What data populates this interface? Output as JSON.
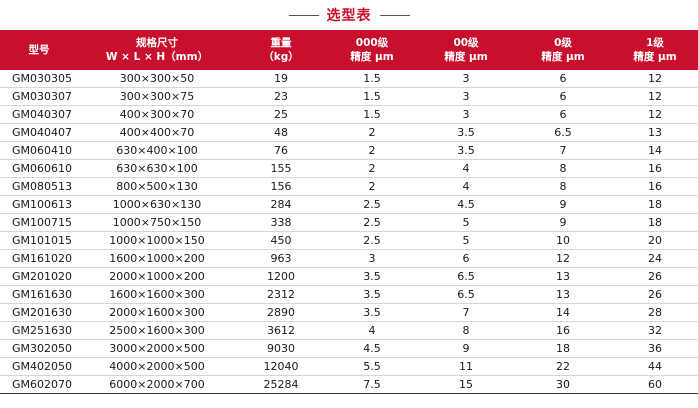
{
  "title": "选型表",
  "headers": [
    {
      "l1": "型号",
      "l2": ""
    },
    {
      "l1": "规格尺寸",
      "l2": "W × L × H（mm）"
    },
    {
      "l1": "重量",
      "l2": "（kg）"
    },
    {
      "l1": "000级",
      "l2": "精度 μm"
    },
    {
      "l1": "00级",
      "l2": "精度 μm"
    },
    {
      "l1": "0级",
      "l2": "精度 μm"
    },
    {
      "l1": "1级",
      "l2": "精度 μm"
    }
  ],
  "rows": [
    [
      "GM030305",
      "300×300×50",
      "19",
      "1.5",
      "3",
      "6",
      "12"
    ],
    [
      "GM030307",
      "300×300×75",
      "23",
      "1.5",
      "3",
      "6",
      "12"
    ],
    [
      "GM040307",
      "400×300×70",
      "25",
      "1.5",
      "3",
      "6",
      "12"
    ],
    [
      "GM040407",
      "400×400×70",
      "48",
      "2",
      "3.5",
      "6.5",
      "13"
    ],
    [
      "GM060410",
      "630×400×100",
      "76",
      "2",
      "3.5",
      "7",
      "14"
    ],
    [
      "GM060610",
      "630×630×100",
      "155",
      "2",
      "4",
      "8",
      "16"
    ],
    [
      "GM080513",
      "800×500×130",
      "156",
      "2",
      "4",
      "8",
      "16"
    ],
    [
      "GM100613",
      "1000×630×130",
      "284",
      "2.5",
      "4.5",
      "9",
      "18"
    ],
    [
      "GM100715",
      "1000×750×150",
      "338",
      "2.5",
      "5",
      "9",
      "18"
    ],
    [
      "GM101015",
      "1000×1000×150",
      "450",
      "2.5",
      "5",
      "10",
      "20"
    ],
    [
      "GM161020",
      "1600×1000×200",
      "963",
      "3",
      "6",
      "12",
      "24"
    ],
    [
      "GM201020",
      "2000×1000×200",
      "1200",
      "3.5",
      "6.5",
      "13",
      "26"
    ],
    [
      "GM161630",
      "1600×1600×300",
      "2312",
      "3.5",
      "6.5",
      "13",
      "26"
    ],
    [
      "GM201630",
      "2000×1600×300",
      "2890",
      "3.5",
      "7",
      "14",
      "28"
    ],
    [
      "GM251630",
      "2500×1600×300",
      "3612",
      "4",
      "8",
      "16",
      "32"
    ],
    [
      "GM302050",
      "3000×2000×500",
      "9030",
      "4.5",
      "9",
      "18",
      "36"
    ],
    [
      "GM402050",
      "4000×2000×500",
      "12040",
      "5.5",
      "11",
      "22",
      "44"
    ],
    [
      "GM602070",
      "6000×2000×700",
      "25284",
      "7.5",
      "15",
      "30",
      "60"
    ]
  ],
  "colors": {
    "accent": "#c8102e"
  }
}
